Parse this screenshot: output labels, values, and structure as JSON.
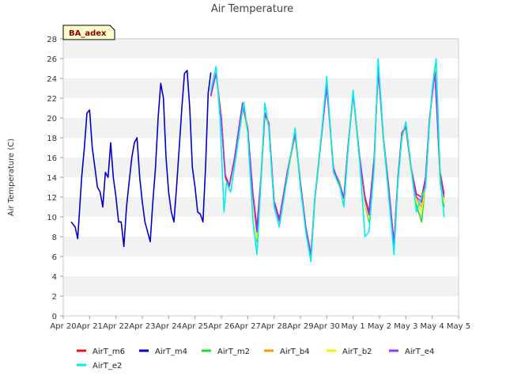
{
  "chart_data": {
    "type": "line",
    "title": "Air Temperature",
    "site_label": "BA_adex",
    "xlabel": "",
    "ylabel": "Air Temperature (C)",
    "ylim": [
      0,
      28
    ],
    "y_ticks": [
      0,
      2,
      4,
      6,
      8,
      10,
      12,
      14,
      16,
      18,
      20,
      22,
      24,
      26,
      28
    ],
    "xlim": [
      0,
      15
    ],
    "x_tick_labels": [
      "Apr 20",
      "Apr 21",
      "Apr 22",
      "Apr 23",
      "Apr 24",
      "Apr 25",
      "Apr 26",
      "Apr 27",
      "Apr 28",
      "Apr 29",
      "Apr 30",
      "May 1",
      "May 2",
      "May 3",
      "May 4",
      "May 5"
    ],
    "grid": "horizontal bands",
    "legend_placement": "bottom",
    "series": [
      {
        "name": "AirT_m6",
        "color": "#e8101a",
        "x": [
          5.6,
          5.8,
          6.0,
          6.15,
          6.3,
          6.5,
          6.8,
          7.0,
          7.2,
          7.35,
          7.5,
          7.65,
          7.8,
          8.0,
          8.2,
          8.5,
          8.8,
          9.0,
          9.2,
          9.4,
          9.55,
          9.75,
          10.0,
          10.25,
          10.5,
          10.65,
          10.8,
          11.0,
          11.25,
          11.45,
          11.6,
          11.8,
          11.95,
          12.15,
          12.35,
          12.55,
          12.7,
          12.85,
          13.0,
          13.2,
          13.4,
          13.6,
          13.75,
          13.9,
          14.1,
          14.3,
          14.45
        ],
        "y": [
          22.2,
          24.6,
          20.0,
          14.2,
          13.2,
          16.0,
          21.5,
          19.0,
          12.3,
          8.9,
          14.0,
          20.5,
          19.5,
          11.6,
          9.8,
          14.5,
          18.5,
          13.5,
          9.0,
          6.2,
          12.0,
          17.0,
          23.3,
          15.0,
          13.0,
          12.0,
          17.0,
          22.5,
          16.0,
          12.0,
          10.5,
          16.0,
          25.0,
          18.0,
          13.0,
          7.3,
          14.0,
          18.5,
          19.2,
          15.0,
          12.3,
          12.0,
          14.0,
          20.0,
          24.8,
          14.5,
          12.3
        ]
      },
      {
        "name": "AirT_m4",
        "color": "#0000cc",
        "x": [
          0.3,
          0.45,
          0.55,
          0.7,
          0.8,
          0.9,
          1.0,
          1.1,
          1.2,
          1.3,
          1.4,
          1.5,
          1.6,
          1.7,
          1.8,
          1.9,
          2.0,
          2.1,
          2.2,
          2.3,
          2.4,
          2.5,
          2.6,
          2.7,
          2.8,
          2.9,
          3.0,
          3.1,
          3.2,
          3.3,
          3.4,
          3.5,
          3.6,
          3.7,
          3.8,
          3.9,
          4.0,
          4.1,
          4.2,
          4.3,
          4.4,
          4.5,
          4.6,
          4.7,
          4.8,
          4.9,
          5.0,
          5.1,
          5.2,
          5.3,
          5.4,
          5.5,
          5.6
        ],
        "y": [
          9.5,
          9.0,
          7.8,
          14.0,
          17.0,
          20.5,
          20.8,
          17.0,
          15.0,
          13.0,
          12.5,
          11.0,
          14.5,
          14.0,
          17.5,
          14.0,
          12.0,
          9.5,
          9.5,
          7.0,
          11.0,
          13.5,
          16.0,
          17.5,
          18.0,
          14.0,
          11.5,
          9.5,
          8.5,
          7.5,
          11.5,
          15.0,
          20.0,
          23.5,
          22.0,
          16.0,
          12.5,
          10.5,
          9.5,
          13.0,
          17.0,
          21.0,
          24.5,
          24.8,
          21.0,
          15.0,
          13.0,
          10.5,
          10.3,
          9.5,
          15.0,
          22.5,
          24.6
        ]
      },
      {
        "name": "AirT_m2",
        "color": "#22dd22",
        "x": [
          5.6,
          5.8,
          6.0,
          6.15,
          6.3,
          6.5,
          6.8,
          7.0,
          7.2,
          7.35,
          7.5,
          7.65,
          7.8,
          8.0,
          8.2,
          8.5,
          8.8,
          9.0,
          9.2,
          9.4,
          9.55,
          9.75,
          10.0,
          10.25,
          10.5,
          10.65,
          10.8,
          11.0,
          11.25,
          11.45,
          11.6,
          11.8,
          11.95,
          12.15,
          12.35,
          12.55,
          12.7,
          12.85,
          13.0,
          13.2,
          13.4,
          13.6,
          13.75,
          13.9,
          14.1,
          14.3,
          14.45
        ],
        "y": [
          22.6,
          24.8,
          19.5,
          13.8,
          13.0,
          15.8,
          21.3,
          18.6,
          11.8,
          7.5,
          13.5,
          20.3,
          19.3,
          11.2,
          9.3,
          14.2,
          18.3,
          13.2,
          8.8,
          5.8,
          11.8,
          16.8,
          23.6,
          14.7,
          13.5,
          11.5,
          16.8,
          22.4,
          15.7,
          11.3,
          9.5,
          15.7,
          25.3,
          17.6,
          12.5,
          6.8,
          13.7,
          18.2,
          19.0,
          14.7,
          11.2,
          9.5,
          13.6,
          19.7,
          25.2,
          13.5,
          11.0
        ]
      },
      {
        "name": "AirT_b4",
        "color": "#ff9900",
        "x": [
          5.6,
          5.8,
          6.0,
          6.15,
          6.3,
          6.5,
          6.8,
          7.0,
          7.2,
          7.35,
          7.5,
          7.65,
          7.8,
          8.0,
          8.2,
          8.5,
          8.8,
          9.0,
          9.2,
          9.4,
          9.55,
          9.75,
          10.0,
          10.25,
          10.5,
          10.65,
          10.8,
          11.0,
          11.25,
          11.45,
          11.6,
          11.8,
          11.95,
          12.15,
          12.35,
          12.55,
          12.7,
          12.85,
          13.0,
          13.2,
          13.4,
          13.6,
          13.75,
          13.9,
          14.1,
          14.3,
          14.45
        ],
        "y": [
          22.4,
          24.6,
          19.7,
          13.9,
          13.1,
          15.9,
          21.4,
          18.8,
          12.0,
          8.2,
          13.7,
          20.4,
          19.4,
          11.4,
          9.5,
          14.3,
          18.4,
          13.3,
          8.9,
          6.0,
          11.9,
          16.9,
          23.4,
          14.8,
          13.3,
          11.8,
          16.9,
          22.5,
          15.8,
          11.6,
          10.0,
          15.8,
          25.1,
          17.8,
          12.8,
          7.0,
          13.8,
          18.3,
          19.1,
          14.8,
          11.8,
          11.0,
          13.8,
          19.8,
          25.0,
          14.0,
          11.8
        ]
      },
      {
        "name": "AirT_b2",
        "color": "#ffee00",
        "x": [
          5.6,
          5.8,
          6.0,
          6.15,
          6.3,
          6.5,
          6.8,
          7.0,
          7.2,
          7.35,
          7.5,
          7.65,
          7.8,
          8.0,
          8.2,
          8.5,
          8.8,
          9.0,
          9.2,
          9.4,
          9.55,
          9.75,
          10.0,
          10.25,
          10.5,
          10.65,
          10.8,
          11.0,
          11.25,
          11.45,
          11.6,
          11.8,
          11.95,
          12.15,
          12.35,
          12.55,
          12.7,
          12.85,
          13.0,
          13.2,
          13.4,
          13.6,
          13.75,
          13.9,
          14.1,
          14.3,
          14.45
        ],
        "y": [
          22.5,
          24.7,
          19.6,
          13.7,
          12.9,
          15.7,
          21.2,
          18.5,
          11.7,
          7.8,
          13.6,
          20.2,
          19.2,
          11.3,
          9.4,
          14.1,
          18.2,
          13.1,
          8.7,
          5.9,
          11.7,
          16.7,
          23.5,
          14.6,
          13.4,
          11.6,
          16.7,
          22.3,
          15.6,
          11.4,
          9.8,
          15.6,
          25.2,
          17.7,
          12.6,
          6.9,
          13.6,
          18.1,
          18.9,
          14.6,
          11.5,
          10.5,
          13.7,
          19.6,
          25.1,
          13.8,
          11.5
        ]
      },
      {
        "name": "AirT_e4",
        "color": "#9933ff",
        "x": [
          5.6,
          5.8,
          6.0,
          6.15,
          6.3,
          6.5,
          6.8,
          7.0,
          7.2,
          7.35,
          7.5,
          7.65,
          7.8,
          8.0,
          8.2,
          8.5,
          8.8,
          9.0,
          9.2,
          9.4,
          9.55,
          9.75,
          10.0,
          10.25,
          10.5,
          10.65,
          10.8,
          11.0,
          11.25,
          11.45,
          11.6,
          11.8,
          11.95,
          12.15,
          12.35,
          12.55,
          12.7,
          12.85,
          13.0,
          13.2,
          13.4,
          13.6,
          13.75,
          13.9,
          14.1,
          14.3,
          14.45
        ],
        "y": [
          22.3,
          24.5,
          19.8,
          14.0,
          13.1,
          15.9,
          21.4,
          18.9,
          12.1,
          8.5,
          13.8,
          20.4,
          19.4,
          11.5,
          9.6,
          14.4,
          18.4,
          13.4,
          9.0,
          6.1,
          11.9,
          16.9,
          23.2,
          14.9,
          13.2,
          11.9,
          16.9,
          22.4,
          15.9,
          11.8,
          10.2,
          15.9,
          24.9,
          17.9,
          12.9,
          7.2,
          13.9,
          18.4,
          19.1,
          14.9,
          12.0,
          11.5,
          13.9,
          19.9,
          24.7,
          14.2,
          12.0
        ]
      },
      {
        "name": "AirT_e2",
        "color": "#00eeee",
        "x": [
          5.6,
          5.8,
          5.95,
          6.1,
          6.2,
          6.35,
          6.55,
          6.85,
          7.0,
          7.2,
          7.35,
          7.5,
          7.65,
          7.8,
          8.0,
          8.2,
          8.5,
          8.8,
          9.0,
          9.2,
          9.4,
          9.55,
          9.75,
          10.0,
          10.25,
          10.5,
          10.65,
          10.8,
          11.0,
          11.25,
          11.45,
          11.6,
          11.8,
          11.95,
          12.15,
          12.35,
          12.55,
          12.7,
          12.85,
          13.0,
          13.2,
          13.4,
          13.6,
          13.75,
          13.9,
          14.0,
          14.15,
          14.3,
          14.45
        ],
        "y": [
          22.8,
          25.2,
          20.0,
          10.5,
          13.5,
          12.5,
          16.0,
          21.6,
          18.5,
          9.5,
          6.2,
          13.5,
          21.5,
          19.0,
          11.0,
          9.0,
          14.0,
          19.0,
          13.0,
          8.5,
          5.5,
          12.0,
          17.0,
          24.2,
          14.5,
          13.0,
          11.0,
          16.5,
          22.8,
          15.5,
          8.0,
          8.5,
          15.0,
          26.0,
          18.0,
          12.0,
          6.2,
          13.5,
          18.0,
          19.6,
          15.0,
          10.5,
          12.0,
          13.0,
          19.5,
          23.0,
          26.0,
          14.0,
          10.0
        ]
      }
    ]
  }
}
